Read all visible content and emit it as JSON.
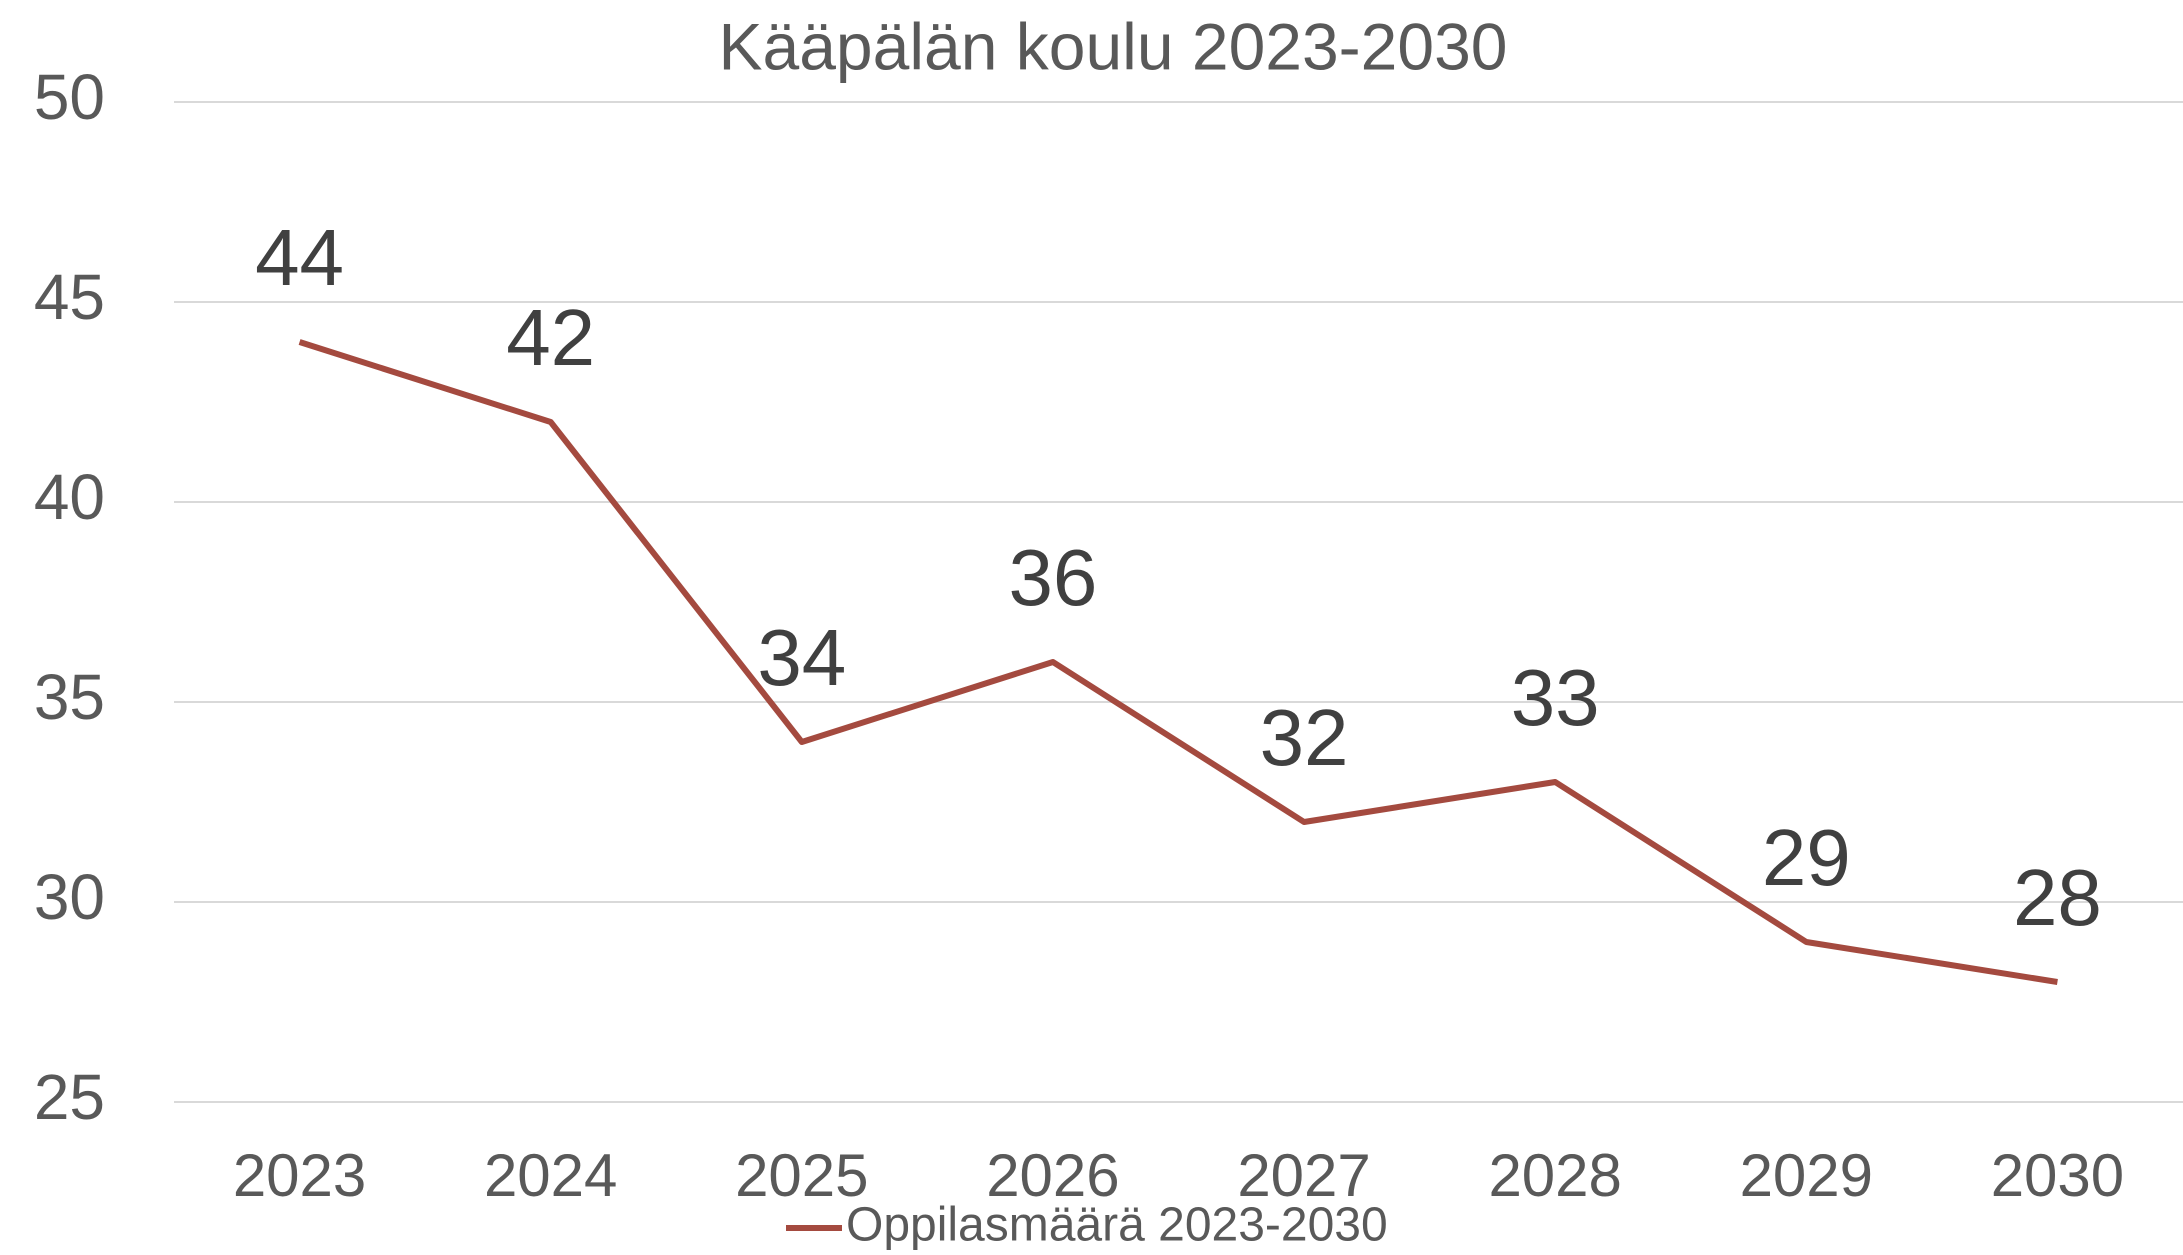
{
  "chart_data": {
    "type": "line",
    "title": "Kääpälän koulu 2023-2030",
    "categories": [
      "2023",
      "2024",
      "2025",
      "2026",
      "2027",
      "2028",
      "2029",
      "2030"
    ],
    "series": [
      {
        "name": "Oppilasmäärä 2023-2030",
        "color": "#a44a3f",
        "values": [
          44,
          42,
          34,
          36,
          32,
          33,
          29,
          28
        ]
      }
    ],
    "ylim": [
      25,
      50
    ],
    "yticks": [
      25,
      30,
      35,
      40,
      45,
      50
    ],
    "grid": true,
    "legend": "bottom",
    "data_labels": true
  }
}
